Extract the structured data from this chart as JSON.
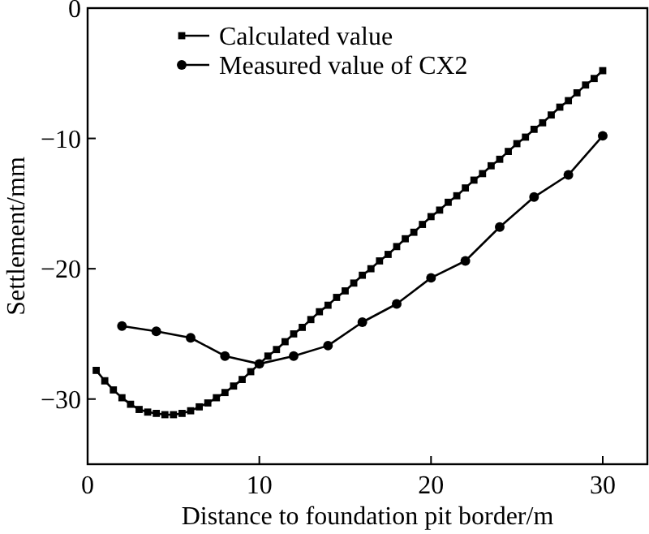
{
  "chart_data": {
    "type": "line",
    "xlabel": "Distance to foundation pit border/m",
    "ylabel": "Settlement/mm",
    "xlim": [
      0,
      32.6
    ],
    "ylim": [
      -35,
      0
    ],
    "xticks": [
      0,
      10,
      20,
      30
    ],
    "yticks": [
      0,
      -10,
      -20,
      -30
    ],
    "grid": false,
    "legend": "top",
    "line_style": "solid",
    "series": [
      {
        "name": "Calculated value",
        "color": "#000000",
        "marker": "square",
        "x": [
          0.5,
          1,
          1.5,
          2,
          2.5,
          3,
          3.5,
          4,
          4.5,
          5,
          5.5,
          6,
          6.5,
          7,
          7.5,
          8,
          8.5,
          9,
          9.5,
          10,
          10.5,
          11,
          11.5,
          12,
          12.5,
          13,
          13.5,
          14,
          14.5,
          15,
          15.5,
          16,
          16.5,
          17,
          17.5,
          18,
          18.5,
          19,
          19.5,
          20,
          20.5,
          21,
          21.5,
          22,
          22.5,
          23,
          23.5,
          24,
          24.5,
          25,
          25.5,
          26,
          26.5,
          27,
          27.5,
          28,
          28.5,
          29,
          29.5,
          30
        ],
        "values": [
          -27.8,
          -28.6,
          -29.3,
          -29.9,
          -30.4,
          -30.8,
          -31.0,
          -31.1,
          -31.2,
          -31.2,
          -31.1,
          -30.9,
          -30.6,
          -30.3,
          -29.9,
          -29.5,
          -29.0,
          -28.5,
          -27.9,
          -27.3,
          -26.7,
          -26.2,
          -25.6,
          -25.0,
          -24.5,
          -23.9,
          -23.3,
          -22.8,
          -22.2,
          -21.7,
          -21.1,
          -20.5,
          -20.0,
          -19.4,
          -18.9,
          -18.3,
          -17.7,
          -17.2,
          -16.6,
          -16.0,
          -15.5,
          -14.9,
          -14.4,
          -13.8,
          -13.2,
          -12.7,
          -12.1,
          -11.6,
          -11.0,
          -10.4,
          -9.9,
          -9.3,
          -8.8,
          -8.2,
          -7.6,
          -7.1,
          -6.5,
          -5.9,
          -5.4,
          -4.8
        ]
      },
      {
        "name": "Measured value of CX2",
        "color": "#000000",
        "marker": "circle",
        "x": [
          2,
          4,
          6,
          8,
          10,
          12,
          14,
          16,
          18,
          20,
          22,
          24,
          26,
          28,
          30
        ],
        "values": [
          -24.4,
          -24.8,
          -25.3,
          -26.7,
          -27.3,
          -26.7,
          -25.9,
          -24.1,
          -22.7,
          -20.7,
          -19.4,
          -16.8,
          -14.5,
          -12.8,
          -9.8
        ]
      }
    ]
  }
}
